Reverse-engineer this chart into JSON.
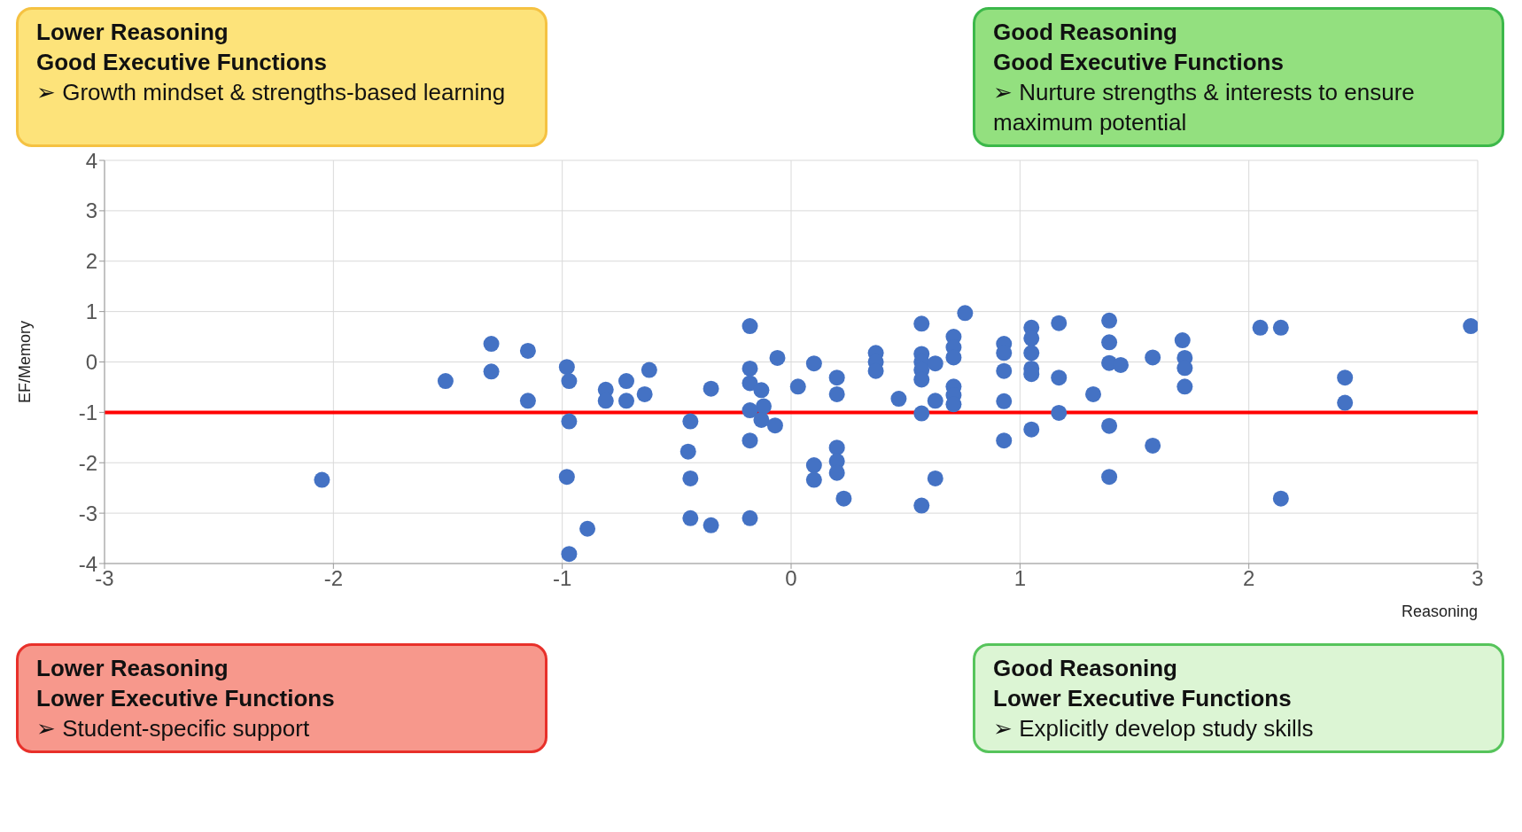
{
  "chart_data": {
    "type": "scatter",
    "xlabel": "Reasoning",
    "ylabel": "EF/Memory",
    "xlim": [
      -3,
      3
    ],
    "xticks": [
      -3,
      -2,
      -1,
      0,
      1,
      2,
      3
    ],
    "ylim": [
      -4,
      4
    ],
    "yticks": [
      -4,
      -3,
      -2,
      -1,
      0,
      1,
      2,
      3,
      4
    ],
    "grid": true,
    "marker": "circle",
    "series": [
      {
        "color": "#4472c4",
        "x": [
          -0.18,
          -0.06,
          -0.18,
          -0.18,
          -0.13,
          -0.12,
          -0.18,
          -0.13,
          -0.07,
          -0.18,
          0.03,
          0.1,
          0.2,
          0.2,
          0.2,
          0.2,
          0.2,
          0.1,
          0.1,
          0.23,
          0.37,
          0.37,
          0.37,
          0.47,
          0.57,
          0.57,
          0.57,
          0.57,
          0.57,
          0.63,
          0.57,
          0.63,
          0.57,
          0.63,
          0.71,
          0.71,
          0.71,
          0.71,
          0.71,
          0.71,
          0.76,
          0.93,
          0.93,
          0.93,
          0.93,
          0.93,
          1.05,
          1.05,
          1.05,
          1.05,
          1.05,
          1.05,
          1.17,
          1.17,
          1.17,
          1.32,
          1.39,
          1.39,
          1.39,
          1.44,
          1.39,
          1.39,
          1.58,
          1.58,
          1.71,
          1.72,
          1.72,
          1.72,
          2.05,
          2.14,
          2.14,
          2.42,
          2.42,
          2.97,
          -1.31,
          -1.15,
          -1.31,
          -1.51,
          -1.15,
          -0.98,
          -0.97,
          -0.97,
          -0.98,
          -0.97,
          -0.89,
          -0.81,
          -0.81,
          -0.72,
          -0.72,
          -0.64,
          -0.62,
          -0.44,
          -0.45,
          -0.44,
          -0.44,
          -0.35,
          -0.35,
          -0.18,
          -2.05
        ],
        "values": [
          0.71,
          0.08,
          -0.13,
          -0.42,
          -0.56,
          -0.88,
          -0.96,
          -1.15,
          -1.26,
          -1.56,
          -0.49,
          -0.03,
          -0.31,
          -0.64,
          -1.7,
          -1.97,
          -2.2,
          -2.05,
          -2.34,
          -2.71,
          0.18,
          0,
          -0.18,
          -0.73,
          0.76,
          0.16,
          0,
          -0.16,
          -0.35,
          -0.03,
          -1.02,
          -2.31,
          -2.85,
          -0.77,
          0.5,
          0.29,
          0.09,
          -0.49,
          -0.66,
          -0.84,
          0.97,
          0.36,
          0.18,
          -0.18,
          -0.78,
          -1.56,
          0.68,
          0.47,
          0.18,
          -0.13,
          -0.24,
          -1.34,
          0.77,
          -0.31,
          -1.01,
          -0.64,
          0.82,
          0.39,
          -0.02,
          -0.06,
          -1.27,
          -2.28,
          0.09,
          -1.66,
          0.43,
          0.08,
          -0.12,
          -0.49,
          0.68,
          0.68,
          -2.71,
          -0.31,
          -0.81,
          0.71,
          0.36,
          0.22,
          -0.19,
          -0.38,
          -0.77,
          -0.1,
          -0.38,
          -1.18,
          -2.28,
          -3.81,
          -3.31,
          -0.55,
          -0.77,
          -0.38,
          -0.77,
          -0.64,
          -0.16,
          -1.18,
          -1.78,
          -2.31,
          -3.1,
          -0.53,
          -3.24,
          -3.1,
          -2.34
        ]
      }
    ],
    "ref_lines": [
      {
        "axis": "y",
        "value": -1,
        "color": "#ff0000",
        "line_style": "solid"
      }
    ],
    "annotations": [
      "Lower Reasoning\nGood Executive Functions\n➢ Growth mindset & strengths-based learning",
      "Good Reasoning\nGood Executive Functions\n➢ Nurture strengths & interests to ensure maximum potential",
      "Lower Reasoning\nLower Executive Functions\n➢ Student-specific support",
      "Good Reasoning\nLower Executive Functions\n➢ Explicitly develop study skills"
    ]
  }
}
